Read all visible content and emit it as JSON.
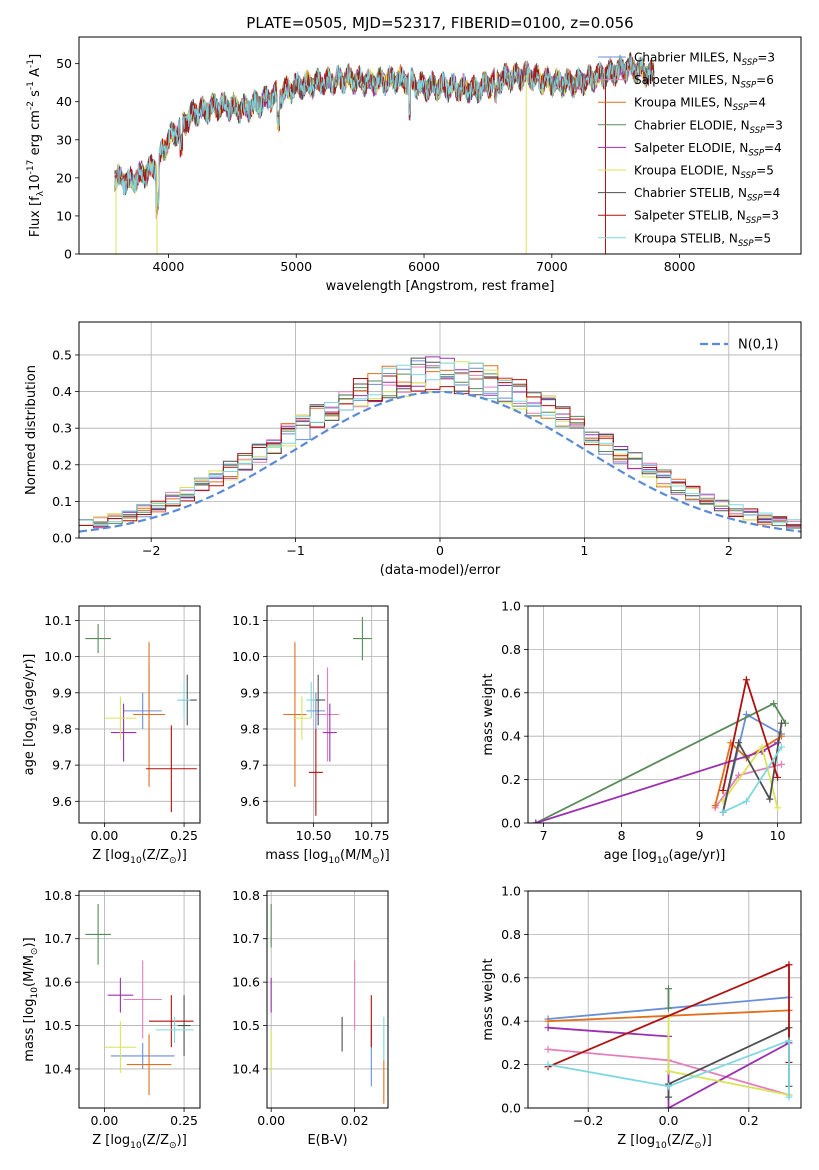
{
  "title": "PLATE=0505, MJD=52317, FIBERID=0100, z=0.056",
  "colors": {
    "Chabrier MILES": "#6a8fd6",
    "Salpeter MILES": "#e47fbe",
    "Kroupa MILES": "#e0701e",
    "Chabrier ELODIE": "#5a8a5a",
    "Salpeter ELODIE": "#9b30b0",
    "Kroupa ELODIE": "#d8e45a",
    "Chabrier STELIB": "#505050",
    "Salpeter STELIB": "#b01010",
    "Kroupa STELIB": "#7fd8e0",
    "gaussian": "#5b8bd6"
  },
  "chart_data": [
    {
      "id": "spectrum",
      "type": "line",
      "xlabel": "wavelength [Angstrom, rest frame]",
      "ylabel": "Flux [f$_\\lambda$10$^{-17}$ erg cm$^{-2}$ s$^{-1}$ A$^{-1}$]",
      "xlim": [
        3300,
        8950
      ],
      "ylim": [
        0,
        57
      ],
      "xticks": [
        4000,
        5000,
        6000,
        7000,
        8000
      ],
      "yticks": [
        0,
        10,
        20,
        30,
        40,
        50
      ],
      "grid": false,
      "legend": "top-right",
      "legend_entries": [
        {
          "model": "Chabrier MILES",
          "n": "3"
        },
        {
          "model": "Salpeter MILES",
          "n": "6"
        },
        {
          "model": "Kroupa MILES",
          "n": "4"
        },
        {
          "model": "Chabrier ELODIE",
          "n": "3"
        },
        {
          "model": "Salpeter ELODIE",
          "n": "4"
        },
        {
          "model": "Kroupa ELODIE",
          "n": "5"
        },
        {
          "model": "Chabrier STELIB",
          "n": "4"
        },
        {
          "model": "Salpeter STELIB",
          "n": "3"
        },
        {
          "model": "Kroupa STELIB",
          "n": "5"
        }
      ],
      "continuum": {
        "x": [
          3580,
          3700,
          3900,
          4000,
          4200,
          4400,
          4600,
          4800,
          5000,
          5200,
          5400,
          5600,
          5800,
          6000,
          6200,
          6400,
          6600,
          6800,
          7000,
          7200,
          7400,
          7600,
          7800
        ],
        "y": [
          20,
          19,
          23,
          30,
          37,
          39,
          38,
          41,
          44,
          45,
          46,
          45,
          46,
          44,
          44,
          43,
          46,
          47,
          45,
          45,
          47,
          49,
          47
        ]
      },
      "spikes": [
        {
          "x": 3590,
          "y": 0
        },
        {
          "x": 3910,
          "y": 0
        },
        {
          "x": 6800,
          "y": 0
        },
        {
          "x": 7420,
          "y": 0
        }
      ]
    },
    {
      "id": "residuals",
      "type": "histogram",
      "xlabel": "(data-model)/error",
      "ylabel": "Normed distribution",
      "xlim": [
        -2.5,
        2.5
      ],
      "ylim": [
        0,
        0.59
      ],
      "xticks": [
        -2,
        -1,
        0,
        1,
        2
      ],
      "yticks": [
        0.0,
        0.1,
        0.2,
        0.3,
        0.4,
        0.5
      ],
      "grid": true,
      "legend": "top-right",
      "gaussian_label": "$\\mathcal{N}(0,1)$",
      "bin_width": 0.1
    },
    {
      "id": "age_vs_Z",
      "type": "scatter",
      "xlabel": "Z [log$_{10}$(Z/Z$_\\odot$)]",
      "ylabel": "age  [log$_{10}$(age/yr)]",
      "xlim": [
        -0.08,
        0.3
      ],
      "ylim": [
        9.54,
        10.14
      ],
      "xticks": [
        0.0,
        0.25
      ],
      "yticks": [
        9.6,
        9.7,
        9.8,
        9.9,
        10.0,
        10.1
      ],
      "grid": true,
      "points": [
        {
          "model": "Chabrier MILES",
          "x": 0.12,
          "y": 9.85,
          "xerr": 0.06,
          "yerr": 0.05
        },
        {
          "model": "Salpeter MILES",
          "x": 0.14,
          "y": 9.84,
          "xerr": 0.04,
          "yerr": 0.13
        },
        {
          "model": "Kroupa MILES",
          "x": 0.14,
          "y": 9.84,
          "xerr": 0.05,
          "yerr": 0.2
        },
        {
          "model": "Chabrier ELODIE",
          "x": -0.02,
          "y": 10.05,
          "xerr": 0.04,
          "yerr": 0.04
        },
        {
          "model": "Salpeter ELODIE",
          "x": 0.06,
          "y": 9.79,
          "xerr": 0.04,
          "yerr": 0.08
        },
        {
          "model": "Kroupa ELODIE",
          "x": 0.05,
          "y": 9.83,
          "xerr": 0.05,
          "yerr": 0.06
        },
        {
          "model": "Chabrier STELIB",
          "x": 0.26,
          "y": 9.88,
          "xerr": 0.03,
          "yerr": 0.07
        },
        {
          "model": "Salpeter STELIB",
          "x": 0.21,
          "y": 9.69,
          "xerr": 0.08,
          "yerr": 0.12
        },
        {
          "model": "Kroupa STELIB",
          "x": 0.25,
          "y": 9.88,
          "xerr": 0.02,
          "yerr": 0.05
        }
      ]
    },
    {
      "id": "age_vs_mass",
      "type": "scatter",
      "xlabel": "mass [log$_{10}$(M/M$_\\odot$)]",
      "ylabel": "",
      "xlim": [
        10.3,
        10.82
      ],
      "ylim": [
        9.54,
        10.14
      ],
      "xticks": [
        10.5,
        10.75
      ],
      "yticks": [
        9.6,
        9.7,
        9.8,
        9.9,
        10.0,
        10.1
      ],
      "grid": true,
      "points": [
        {
          "model": "Chabrier MILES",
          "x": 10.51,
          "y": 9.85,
          "xerr": 0.04,
          "yerr": 0.05
        },
        {
          "model": "Salpeter MILES",
          "x": 10.56,
          "y": 9.84,
          "xerr": 0.05,
          "yerr": 0.13
        },
        {
          "model": "Kroupa MILES",
          "x": 10.42,
          "y": 9.84,
          "xerr": 0.05,
          "yerr": 0.2
        },
        {
          "model": "Chabrier ELODIE",
          "x": 10.71,
          "y": 10.05,
          "xerr": 0.04,
          "yerr": 0.06
        },
        {
          "model": "Salpeter ELODIE",
          "x": 10.57,
          "y": 9.79,
          "xerr": 0.03,
          "yerr": 0.08
        },
        {
          "model": "Kroupa ELODIE",
          "x": 10.45,
          "y": 9.83,
          "xerr": 0.04,
          "yerr": 0.06
        },
        {
          "model": "Chabrier STELIB",
          "x": 10.52,
          "y": 9.88,
          "xerr": 0.03,
          "yerr": 0.07
        },
        {
          "model": "Salpeter STELIB",
          "x": 10.51,
          "y": 9.68,
          "xerr": 0.03,
          "yerr": 0.12
        },
        {
          "model": "Kroupa STELIB",
          "x": 10.49,
          "y": 9.88,
          "xerr": 0.02,
          "yerr": 0.05
        }
      ]
    },
    {
      "id": "weight_vs_age",
      "type": "line",
      "xlabel": "age  [log$_{10}$(age/yr)]",
      "ylabel": "mass weight",
      "xlim": [
        6.8,
        10.3
      ],
      "ylim": [
        0,
        1
      ],
      "xticks": [
        7,
        8,
        9,
        10
      ],
      "yticks": [
        0.0,
        0.2,
        0.4,
        0.6,
        0.8,
        1.0
      ],
      "grid": true,
      "series": [
        {
          "model": "Chabrier MILES",
          "x": [
            9.3,
            9.6,
            10.05
          ],
          "y": [
            0.05,
            0.5,
            0.41
          ]
        },
        {
          "model": "Salpeter MILES",
          "x": [
            9.2,
            9.5,
            10.05
          ],
          "y": [
            0.07,
            0.22,
            0.27
          ]
        },
        {
          "model": "Kroupa MILES",
          "x": [
            9.2,
            9.4,
            9.6,
            10.05
          ],
          "y": [
            0.08,
            0.37,
            0.3,
            0.4
          ]
        },
        {
          "model": "Chabrier ELODIE",
          "x": [
            6.9,
            9.95,
            10.1
          ],
          "y": [
            0.0,
            0.55,
            0.46
          ]
        },
        {
          "model": "Salpeter ELODIE",
          "x": [
            6.9,
            9.8,
            10.0
          ],
          "y": [
            0.0,
            0.33,
            0.37
          ]
        },
        {
          "model": "Kroupa ELODIE",
          "x": [
            9.3,
            9.8,
            10.0
          ],
          "y": [
            0.1,
            0.35,
            0.07
          ]
        },
        {
          "model": "Chabrier STELIB",
          "x": [
            9.3,
            9.5,
            9.9,
            10.05
          ],
          "y": [
            0.05,
            0.37,
            0.11,
            0.46
          ]
        },
        {
          "model": "Salpeter STELIB",
          "x": [
            9.3,
            9.6,
            10.0
          ],
          "y": [
            0.15,
            0.66,
            0.21
          ]
        },
        {
          "model": "Kroupa STELIB",
          "x": [
            9.3,
            9.6,
            10.05
          ],
          "y": [
            0.05,
            0.1,
            0.35
          ]
        }
      ]
    },
    {
      "id": "mass_vs_Z",
      "type": "scatter",
      "xlabel": "Z [log$_{10}$(Z/Z$_\\odot$)]",
      "ylabel": "mass [log$_{10}$(M/M$_\\odot$)]",
      "xlim": [
        -0.08,
        0.3
      ],
      "ylim": [
        10.31,
        10.81
      ],
      "xticks": [
        0.0,
        0.25
      ],
      "yticks": [
        10.4,
        10.5,
        10.6,
        10.7,
        10.8
      ],
      "grid": true,
      "points": [
        {
          "model": "Chabrier MILES",
          "x": 0.12,
          "y": 10.43,
          "xerr": 0.1,
          "yerr": 0.03
        },
        {
          "model": "Salpeter MILES",
          "x": 0.12,
          "y": 10.56,
          "xerr": 0.06,
          "yerr": 0.09
        },
        {
          "model": "Kroupa MILES",
          "x": 0.14,
          "y": 10.41,
          "xerr": 0.07,
          "yerr": 0.07
        },
        {
          "model": "Chabrier ELODIE",
          "x": -0.02,
          "y": 10.71,
          "xerr": 0.04,
          "yerr": 0.07
        },
        {
          "model": "Salpeter ELODIE",
          "x": 0.05,
          "y": 10.57,
          "xerr": 0.04,
          "yerr": 0.04
        },
        {
          "model": "Kroupa ELODIE",
          "x": 0.05,
          "y": 10.45,
          "xerr": 0.05,
          "yerr": 0.06
        },
        {
          "model": "Chabrier STELIB",
          "x": 0.25,
          "y": 10.5,
          "xerr": 0.02,
          "yerr": 0.07
        },
        {
          "model": "Salpeter STELIB",
          "x": 0.21,
          "y": 10.51,
          "xerr": 0.07,
          "yerr": 0.06
        },
        {
          "model": "Kroupa STELIB",
          "x": 0.22,
          "y": 10.49,
          "xerr": 0.06,
          "yerr": 0.03
        }
      ]
    },
    {
      "id": "mass_vs_EBV",
      "type": "scatter",
      "xlabel": "E(B-V)",
      "ylabel": "",
      "xlim": [
        -0.001,
        0.028
      ],
      "ylim": [
        10.31,
        10.81
      ],
      "xticks": [
        0.0,
        0.02
      ],
      "yticks": [
        10.4,
        10.5,
        10.6,
        10.7,
        10.8
      ],
      "grid": true,
      "points": [
        {
          "model": "Chabrier MILES",
          "x": 0.024,
          "y": 10.43,
          "xerr": 0.0,
          "yerr": 0.07
        },
        {
          "model": "Salpeter MILES",
          "x": 0.02,
          "y": 10.57,
          "xerr": 0.0,
          "yerr": 0.08
        },
        {
          "model": "Kroupa MILES",
          "x": 0.027,
          "y": 10.37,
          "xerr": 0.0,
          "yerr": 0.05
        },
        {
          "model": "Chabrier ELODIE",
          "x": 0.0,
          "y": 10.73,
          "xerr": 0.0,
          "yerr": 0.05
        },
        {
          "model": "Salpeter ELODIE",
          "x": 0.0,
          "y": 10.57,
          "xerr": 0.0,
          "yerr": 0.04
        },
        {
          "model": "Kroupa ELODIE",
          "x": 0.0,
          "y": 10.44,
          "xerr": 0.0,
          "yerr": 0.05
        },
        {
          "model": "Chabrier STELIB",
          "x": 0.017,
          "y": 10.48,
          "xerr": 0.0,
          "yerr": 0.04
        },
        {
          "model": "Salpeter STELIB",
          "x": 0.024,
          "y": 10.51,
          "xerr": 0.0,
          "yerr": 0.06
        },
        {
          "model": "Kroupa STELIB",
          "x": 0.027,
          "y": 10.47,
          "xerr": 0.0,
          "yerr": 0.05
        }
      ]
    },
    {
      "id": "weight_vs_Z",
      "type": "line",
      "xlabel": "Z [log$_{10}$(Z/Z$_\\odot$)]",
      "ylabel": "mass weight",
      "xlim": [
        -0.35,
        0.33
      ],
      "ylim": [
        0,
        1
      ],
      "xticks": [
        -0.2,
        0.0,
        0.2
      ],
      "yticks": [
        0.0,
        0.2,
        0.4,
        0.6,
        0.8,
        1.0
      ],
      "grid": true,
      "series": [
        {
          "model": "Chabrier MILES",
          "x": [
            -0.3,
            0.3
          ],
          "y": [
            0.41,
            0.51
          ]
        },
        {
          "model": "Salpeter MILES",
          "x": [
            -0.3,
            0.0,
            0.3
          ],
          "y": [
            0.27,
            0.22,
            0.06
          ]
        },
        {
          "model": "Kroupa MILES",
          "x": [
            -0.3,
            0.3
          ],
          "y": [
            0.4,
            0.45
          ]
        },
        {
          "model": "Chabrier ELODIE",
          "x": [
            0.0,
            0.0
          ],
          "y": [
            0.55,
            0.46
          ]
        },
        {
          "model": "Salpeter ELODIE",
          "x": [
            -0.3,
            0.0,
            0.0,
            0.3
          ],
          "y": [
            0.37,
            0.33,
            0.0,
            0.3
          ]
        },
        {
          "model": "Kroupa ELODIE",
          "x": [
            0.0,
            0.0,
            0.3
          ],
          "y": [
            0.42,
            0.17,
            0.06
          ]
        },
        {
          "model": "Chabrier STELIB",
          "x": [
            0.0,
            0.0,
            0.3,
            0.3
          ],
          "y": [
            0.05,
            0.11,
            0.37,
            0.1
          ]
        },
        {
          "model": "Salpeter STELIB",
          "x": [
            -0.3,
            0.3,
            0.3
          ],
          "y": [
            0.19,
            0.66,
            0.21
          ]
        },
        {
          "model": "Kroupa STELIB",
          "x": [
            -0.3,
            0.0,
            0.3,
            0.3
          ],
          "y": [
            0.2,
            0.1,
            0.31,
            0.05
          ]
        }
      ]
    }
  ]
}
